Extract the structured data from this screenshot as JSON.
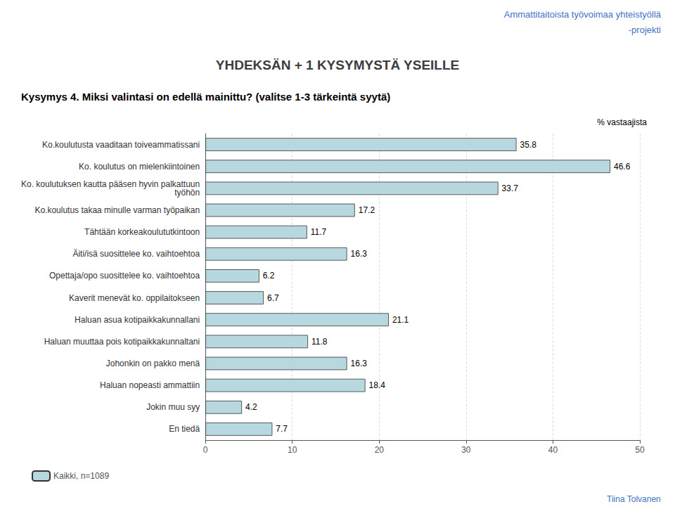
{
  "chart_data": {
    "type": "bar",
    "orientation": "horizontal",
    "title": "YHDEKSÄN + 1 KYSYMYSTÄ YSEILLE",
    "subtitle": "% vastaajista",
    "annotations": [
      "Ammattitaitoista työvoimaa yhteistyöllä",
      "-projekti",
      "Kysymys 4. Miksi valintasi on edellä mainittu? (valitse 1-3 tärkeintä syytä)",
      "Tiina Tolvanen"
    ],
    "categories": [
      "Ko.koulutusta vaaditaan toiveammatissani",
      "Ko. koulutus on mielenkiintoinen",
      "Ko. koulutuksen kautta pääsen hyvin palkattuun\ntyöhön",
      "Ko.koulutus takaa minulle varman työpaikan",
      "Tähtään korkeakoulututkintoon",
      "Äiti/isä suosittelee ko. vaihtoehtoa",
      "Opettaja/opo suosittelee ko. vaihtoehtoa",
      "Kaverit menevät ko. oppilaitokseen",
      "Haluan asua kotipaikkakunnallani",
      "Haluan muuttaa pois kotipaikkakunnaltani",
      "Johonkin on pakko menä",
      "Haluan nopeasti ammattiin",
      "Jokin muu syy",
      "En tiedä"
    ],
    "series": [
      {
        "name": "Kaikki, n=1089",
        "color": "#b8d8e0",
        "values": [
          35.8,
          46.6,
          33.7,
          17.2,
          11.7,
          16.3,
          6.2,
          6.7,
          21.1,
          11.8,
          16.3,
          18.4,
          4.2,
          7.7
        ]
      }
    ],
    "xlim": [
      0,
      50
    ],
    "xticks": [
      0,
      10,
      20,
      30,
      40,
      50
    ],
    "grid": true,
    "data_labels": true,
    "legend": "lower left"
  }
}
